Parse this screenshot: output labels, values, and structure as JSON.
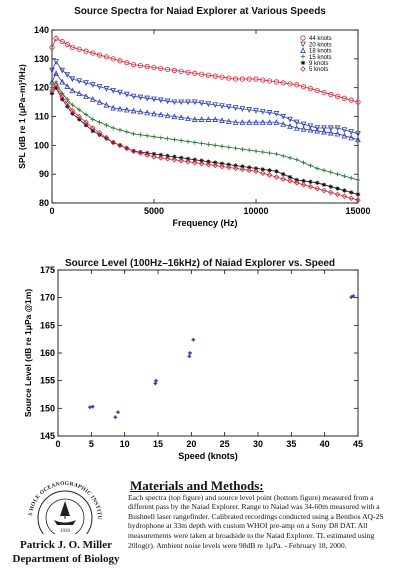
{
  "chart_data": [
    {
      "type": "line",
      "title": "Source Spectra for Naiad Explorer at Various Speeds",
      "xlabel": "Frequency (Hz)",
      "ylabel": "SPL (dB re 1 (μPa–m)²/Hz)",
      "xlim": [
        0,
        15000
      ],
      "ylim": [
        80,
        140
      ],
      "xticks": [
        0,
        5000,
        10000,
        15000
      ],
      "yticks": [
        80,
        90,
        100,
        110,
        120,
        130,
        140
      ],
      "legend_position": "top-right",
      "series": [
        {
          "name": "44 knots",
          "color": "#d9263a",
          "marker": "o",
          "x": [
            0,
            200,
            500,
            1000,
            2000,
            3000,
            4000,
            5000,
            6000,
            7000,
            8000,
            9000,
            10000,
            11000,
            12000,
            13000,
            14000,
            15000
          ],
          "y": [
            134,
            137,
            136,
            134,
            132,
            130,
            128,
            127,
            126,
            125,
            124,
            123,
            123,
            122,
            121,
            119,
            117,
            115
          ]
        },
        {
          "name": "20 knots",
          "color": "#2c3fb0",
          "marker": "v",
          "x": [
            0,
            200,
            500,
            1000,
            2000,
            3000,
            4000,
            5000,
            6000,
            7000,
            8000,
            9000,
            10000,
            11000,
            12000,
            13000,
            14000,
            15000
          ],
          "y": [
            126,
            129,
            126,
            123,
            121,
            119,
            117,
            116,
            115,
            115,
            114,
            113,
            112,
            111,
            108,
            106,
            106,
            104
          ]
        },
        {
          "name": "18 knots",
          "color": "#2c3fb0",
          "marker": "^",
          "x": [
            0,
            200,
            500,
            1000,
            2000,
            3000,
            4000,
            5000,
            6000,
            7000,
            8000,
            9000,
            10000,
            11000,
            12000,
            13000,
            14000,
            15000
          ],
          "y": [
            122,
            125,
            122,
            119,
            116,
            113,
            112,
            111,
            110,
            109,
            109,
            108,
            108,
            108,
            106,
            105,
            104,
            102
          ]
        },
        {
          "name": "15 knots",
          "color": "#1e7a2e",
          "marker": "+",
          "x": [
            0,
            200,
            500,
            1000,
            2000,
            3000,
            4000,
            5000,
            6000,
            7000,
            8000,
            9000,
            10000,
            11000,
            12000,
            13000,
            14000,
            15000
          ],
          "y": [
            120,
            122,
            118,
            114,
            109,
            106,
            104,
            103,
            102,
            101,
            100,
            99,
            98,
            97,
            95,
            92,
            90,
            88
          ]
        },
        {
          "name": "9 knots",
          "color": "#111111",
          "marker": "*",
          "x": [
            0,
            200,
            500,
            1000,
            2000,
            3000,
            4000,
            5000,
            6000,
            7000,
            8000,
            9000,
            10000,
            11000,
            12000,
            13000,
            14000,
            15000
          ],
          "y": [
            118,
            120,
            116,
            111,
            105,
            101,
            98,
            97,
            96,
            95,
            94,
            93,
            92,
            91,
            88,
            87,
            85,
            83
          ]
        },
        {
          "name": "5 knots",
          "color": "#d9263a",
          "marker": "d",
          "x": [
            0,
            200,
            500,
            1000,
            2000,
            3000,
            4000,
            5000,
            6000,
            7000,
            8000,
            9000,
            10000,
            11000,
            12000,
            13000,
            14000,
            15000
          ],
          "y": [
            119,
            121,
            117,
            112,
            106,
            101,
            98,
            96,
            95,
            94,
            93,
            92,
            91,
            89,
            87,
            85,
            83,
            81
          ]
        }
      ]
    },
    {
      "type": "scatter",
      "title": "Source Level (100Hz–16kHz) of Naiad Explorer vs. Speed",
      "xlabel": "Speed (knots)",
      "ylabel": "Source Level (dB re 1μPa @1m)",
      "xlim": [
        0,
        45
      ],
      "ylim": [
        145,
        175
      ],
      "xticks": [
        0,
        5,
        10,
        15,
        20,
        25,
        30,
        35,
        40,
        45
      ],
      "yticks": [
        145,
        150,
        155,
        160,
        165,
        170,
        175
      ],
      "color": "#2c3fb0",
      "points": [
        [
          4.8,
          150.2
        ],
        [
          5.2,
          150.3
        ],
        [
          8.6,
          148.4
        ],
        [
          9.0,
          149.3
        ],
        [
          14.6,
          154.5
        ],
        [
          14.7,
          155.0
        ],
        [
          19.7,
          159.4
        ],
        [
          19.8,
          160.0
        ],
        [
          20.3,
          162.4
        ],
        [
          44.0,
          170.1
        ],
        [
          44.3,
          170.3
        ]
      ]
    }
  ],
  "author": {
    "name": "Patrick J. O. Miller",
    "department": "Department of Biology"
  },
  "logo": {
    "text": "WOODS HOLE OCEANOGRAPHIC INSTITUTION",
    "year": "1930"
  },
  "methods": {
    "heading": "Materials and Methods:",
    "body": "Each spectra (top figure) and source level point (bottom figure) measured from a different pass by the Naiad Explorer. Range to Naiad was 34-60m measured with a Bushnell laser rangefinder.  Calibrated recordings conducted using a Benthos AQ-2S hydrophone at 33m depth with custom WHOI pre-amp on a Sony D8 DAT.  All measurements were taken at broadside to the Naiad Explorer. TL estimated using 20log(r).  Ambient noise levels were 98dB re 1μPa.  - February 18, 2000."
  }
}
